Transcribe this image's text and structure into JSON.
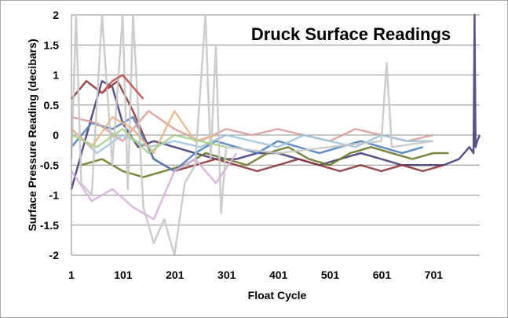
{
  "chart_data": {
    "type": "line",
    "title": "Druck Surface Readings",
    "xlabel": "Float Cycle",
    "ylabel": "Surface Pressure Reading (decibars)",
    "xlim": [
      1,
      790
    ],
    "ylim": [
      -2,
      2
    ],
    "x_ticks": [
      1,
      101,
      201,
      301,
      401,
      501,
      601,
      701
    ],
    "y_ticks": [
      -2,
      -1.5,
      -1,
      -0.5,
      0,
      0.5,
      1,
      1.5,
      2
    ],
    "grid": "horizontal",
    "legend": "none",
    "series": [
      {
        "color": "#4a3f7a",
        "x": [
          1,
          40,
          60,
          80,
          100,
          130,
          160,
          200,
          240,
          280,
          320,
          360,
          400,
          440,
          480,
          520,
          560,
          600,
          640,
          680,
          720,
          750,
          770,
          778,
          780,
          782,
          785,
          790
        ],
        "y": [
          -0.9,
          0.3,
          0.9,
          0.8,
          0.2,
          -0.2,
          -0.1,
          -0.2,
          -0.3,
          -0.4,
          -0.4,
          -0.3,
          -0.3,
          -0.4,
          -0.5,
          -0.4,
          -0.3,
          -0.4,
          -0.5,
          -0.5,
          -0.5,
          -0.4,
          -0.2,
          -0.3,
          2.0,
          -0.2,
          -0.1,
          0.0
        ]
      },
      {
        "color": "#8b3a3a",
        "x": [
          1,
          30,
          60,
          90,
          120,
          160,
          200,
          240,
          280,
          320,
          360,
          400,
          440,
          480,
          520,
          560,
          600,
          640,
          680,
          720
        ],
        "y": [
          0.6,
          0.9,
          0.7,
          0.9,
          0.4,
          -0.4,
          -0.6,
          -0.5,
          -0.4,
          -0.5,
          -0.6,
          -0.5,
          -0.4,
          -0.5,
          -0.6,
          -0.5,
          -0.6,
          -0.5,
          -0.6,
          -0.5
        ]
      },
      {
        "color": "#6b7a2a",
        "x": [
          20,
          60,
          100,
          140,
          180,
          220,
          260,
          300,
          340,
          380,
          420,
          460,
          500,
          540,
          580,
          620,
          660,
          700,
          730
        ],
        "y": [
          -0.5,
          -0.4,
          -0.6,
          -0.7,
          -0.6,
          -0.5,
          -0.3,
          -0.4,
          -0.5,
          -0.3,
          -0.2,
          -0.4,
          -0.5,
          -0.3,
          -0.2,
          -0.3,
          -0.4,
          -0.3,
          -0.3
        ]
      },
      {
        "color": "#4f81bd",
        "x": [
          1,
          40,
          80,
          120,
          160,
          200,
          240,
          280,
          320,
          360,
          400,
          440,
          480,
          520,
          560,
          600,
          640,
          680
        ],
        "y": [
          -0.2,
          0.2,
          0.1,
          0.3,
          -0.4,
          -0.6,
          -0.3,
          -0.1,
          -0.2,
          -0.3,
          -0.1,
          -0.2,
          -0.3,
          -0.2,
          -0.1,
          -0.2,
          -0.3,
          -0.2
        ]
      },
      {
        "color": "#d9a0a0",
        "x": [
          1,
          50,
          100,
          150,
          200,
          250,
          300,
          350,
          400,
          450,
          500,
          550,
          600,
          650,
          700
        ],
        "y": [
          0.3,
          0.2,
          -0.1,
          0.4,
          0.1,
          -0.1,
          0.1,
          0.0,
          0.1,
          0.0,
          -0.1,
          0.1,
          0.0,
          -0.1,
          0.0
        ]
      },
      {
        "color": "#9ec5dd",
        "x": [
          1,
          50,
          100,
          150,
          200,
          250,
          300,
          350,
          400,
          450,
          500,
          550,
          600,
          650,
          700
        ],
        "y": [
          0.1,
          -0.3,
          0.0,
          -0.2,
          -0.1,
          -0.2,
          0.0,
          -0.1,
          -0.2,
          0.0,
          -0.1,
          -0.2,
          0.0,
          -0.1,
          -0.1
        ]
      },
      {
        "color": "#c8c8c8",
        "x": [
          1,
          10,
          20,
          40,
          60,
          80,
          100,
          110,
          120,
          140,
          160,
          180,
          200,
          220,
          240,
          260,
          270,
          280,
          290,
          300,
          400,
          500,
          600,
          610,
          620,
          700
        ],
        "y": [
          -0.4,
          2.0,
          -0.8,
          -1.0,
          2.0,
          -0.5,
          2.0,
          -0.9,
          2.0,
          -1.2,
          -1.8,
          -1.4,
          -2.0,
          -0.8,
          -0.5,
          2.0,
          -0.4,
          1.5,
          -1.3,
          -0.2,
          -0.3,
          -0.2,
          -0.1,
          1.2,
          -0.2,
          -0.1
        ]
      },
      {
        "color": "#d7b2d9",
        "x": [
          1,
          40,
          80,
          120,
          160,
          200,
          240,
          280,
          320
        ],
        "y": [
          -0.6,
          -1.1,
          -0.9,
          -1.2,
          -1.4,
          -0.6,
          -0.4,
          -0.8,
          -0.3
        ]
      },
      {
        "color": "#e6b88a",
        "x": [
          1,
          40,
          80,
          120,
          160,
          200,
          240,
          280
        ],
        "y": [
          0.1,
          -0.2,
          0.3,
          0.1,
          -0.3,
          0.4,
          -0.1,
          0.0
        ]
      },
      {
        "color": "#c0504d",
        "x": [
          60,
          80,
          100,
          120,
          140
        ],
        "y": [
          0.7,
          0.9,
          1.0,
          0.8,
          0.6
        ]
      },
      {
        "color": "#a8d08d",
        "x": [
          1,
          50,
          100,
          150,
          200,
          250,
          300
        ],
        "y": [
          0.0,
          -0.2,
          0.1,
          -0.3,
          0.0,
          -0.1,
          -0.2
        ]
      }
    ]
  }
}
